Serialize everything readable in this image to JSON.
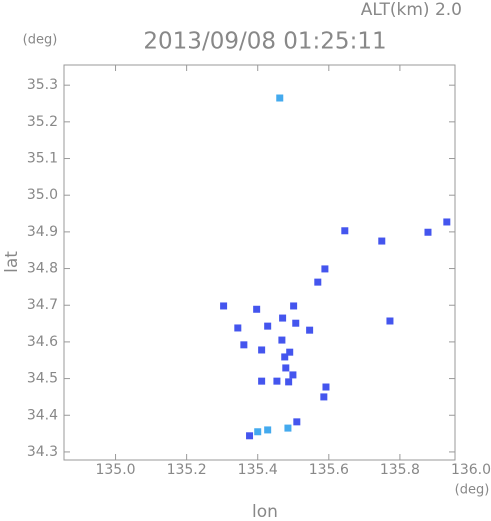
{
  "chart_data": {
    "type": "scatter",
    "title": "2013/09/08 01:25:11",
    "altitude_label": "ALT(km) 2.0",
    "y_unit": "(deg)",
    "x_unit": "(deg)",
    "xlabel": "lon",
    "ylabel": "lat",
    "xlim": [
      134.855,
      135.955
    ],
    "ylim": [
      34.278,
      35.355
    ],
    "xticks": [
      {
        "value": 135,
        "label": "135.0"
      },
      135.2,
      135.4,
      135.6,
      135.8,
      {
        "value": 136,
        "label": "136.0"
      }
    ],
    "yticks": [
      34.3,
      34.4,
      34.5,
      34.6,
      34.7,
      34.8,
      34.9,
      {
        "value": 35,
        "label": "35.0"
      },
      35.1,
      35.2,
      35.3
    ],
    "series": [
      {
        "color": "#4455ee",
        "x": [
          135.645,
          135.749,
          135.879,
          135.932,
          135.589,
          135.569,
          135.501,
          135.304,
          135.397,
          135.344,
          135.428,
          135.507,
          135.546,
          135.47,
          135.772,
          135.361,
          135.411,
          135.468,
          135.476,
          135.49,
          135.479,
          135.499,
          135.487,
          135.411,
          135.454,
          135.592,
          135.586,
          135.51,
          135.377
        ],
        "values": [
          34.903,
          34.875,
          34.899,
          34.927,
          34.799,
          34.763,
          34.698,
          34.698,
          34.689,
          34.638,
          34.643,
          34.651,
          34.632,
          34.665,
          34.657,
          34.592,
          34.578,
          34.605,
          34.559,
          34.572,
          34.529,
          34.51,
          34.491,
          34.493,
          34.493,
          34.477,
          34.45,
          34.382,
          34.344
        ]
      },
      {
        "color": "#44aaee",
        "x": [
          135.462,
          135.4,
          135.428,
          135.485
        ],
        "values": [
          35.265,
          34.355,
          34.36,
          34.365
        ]
      }
    ]
  }
}
